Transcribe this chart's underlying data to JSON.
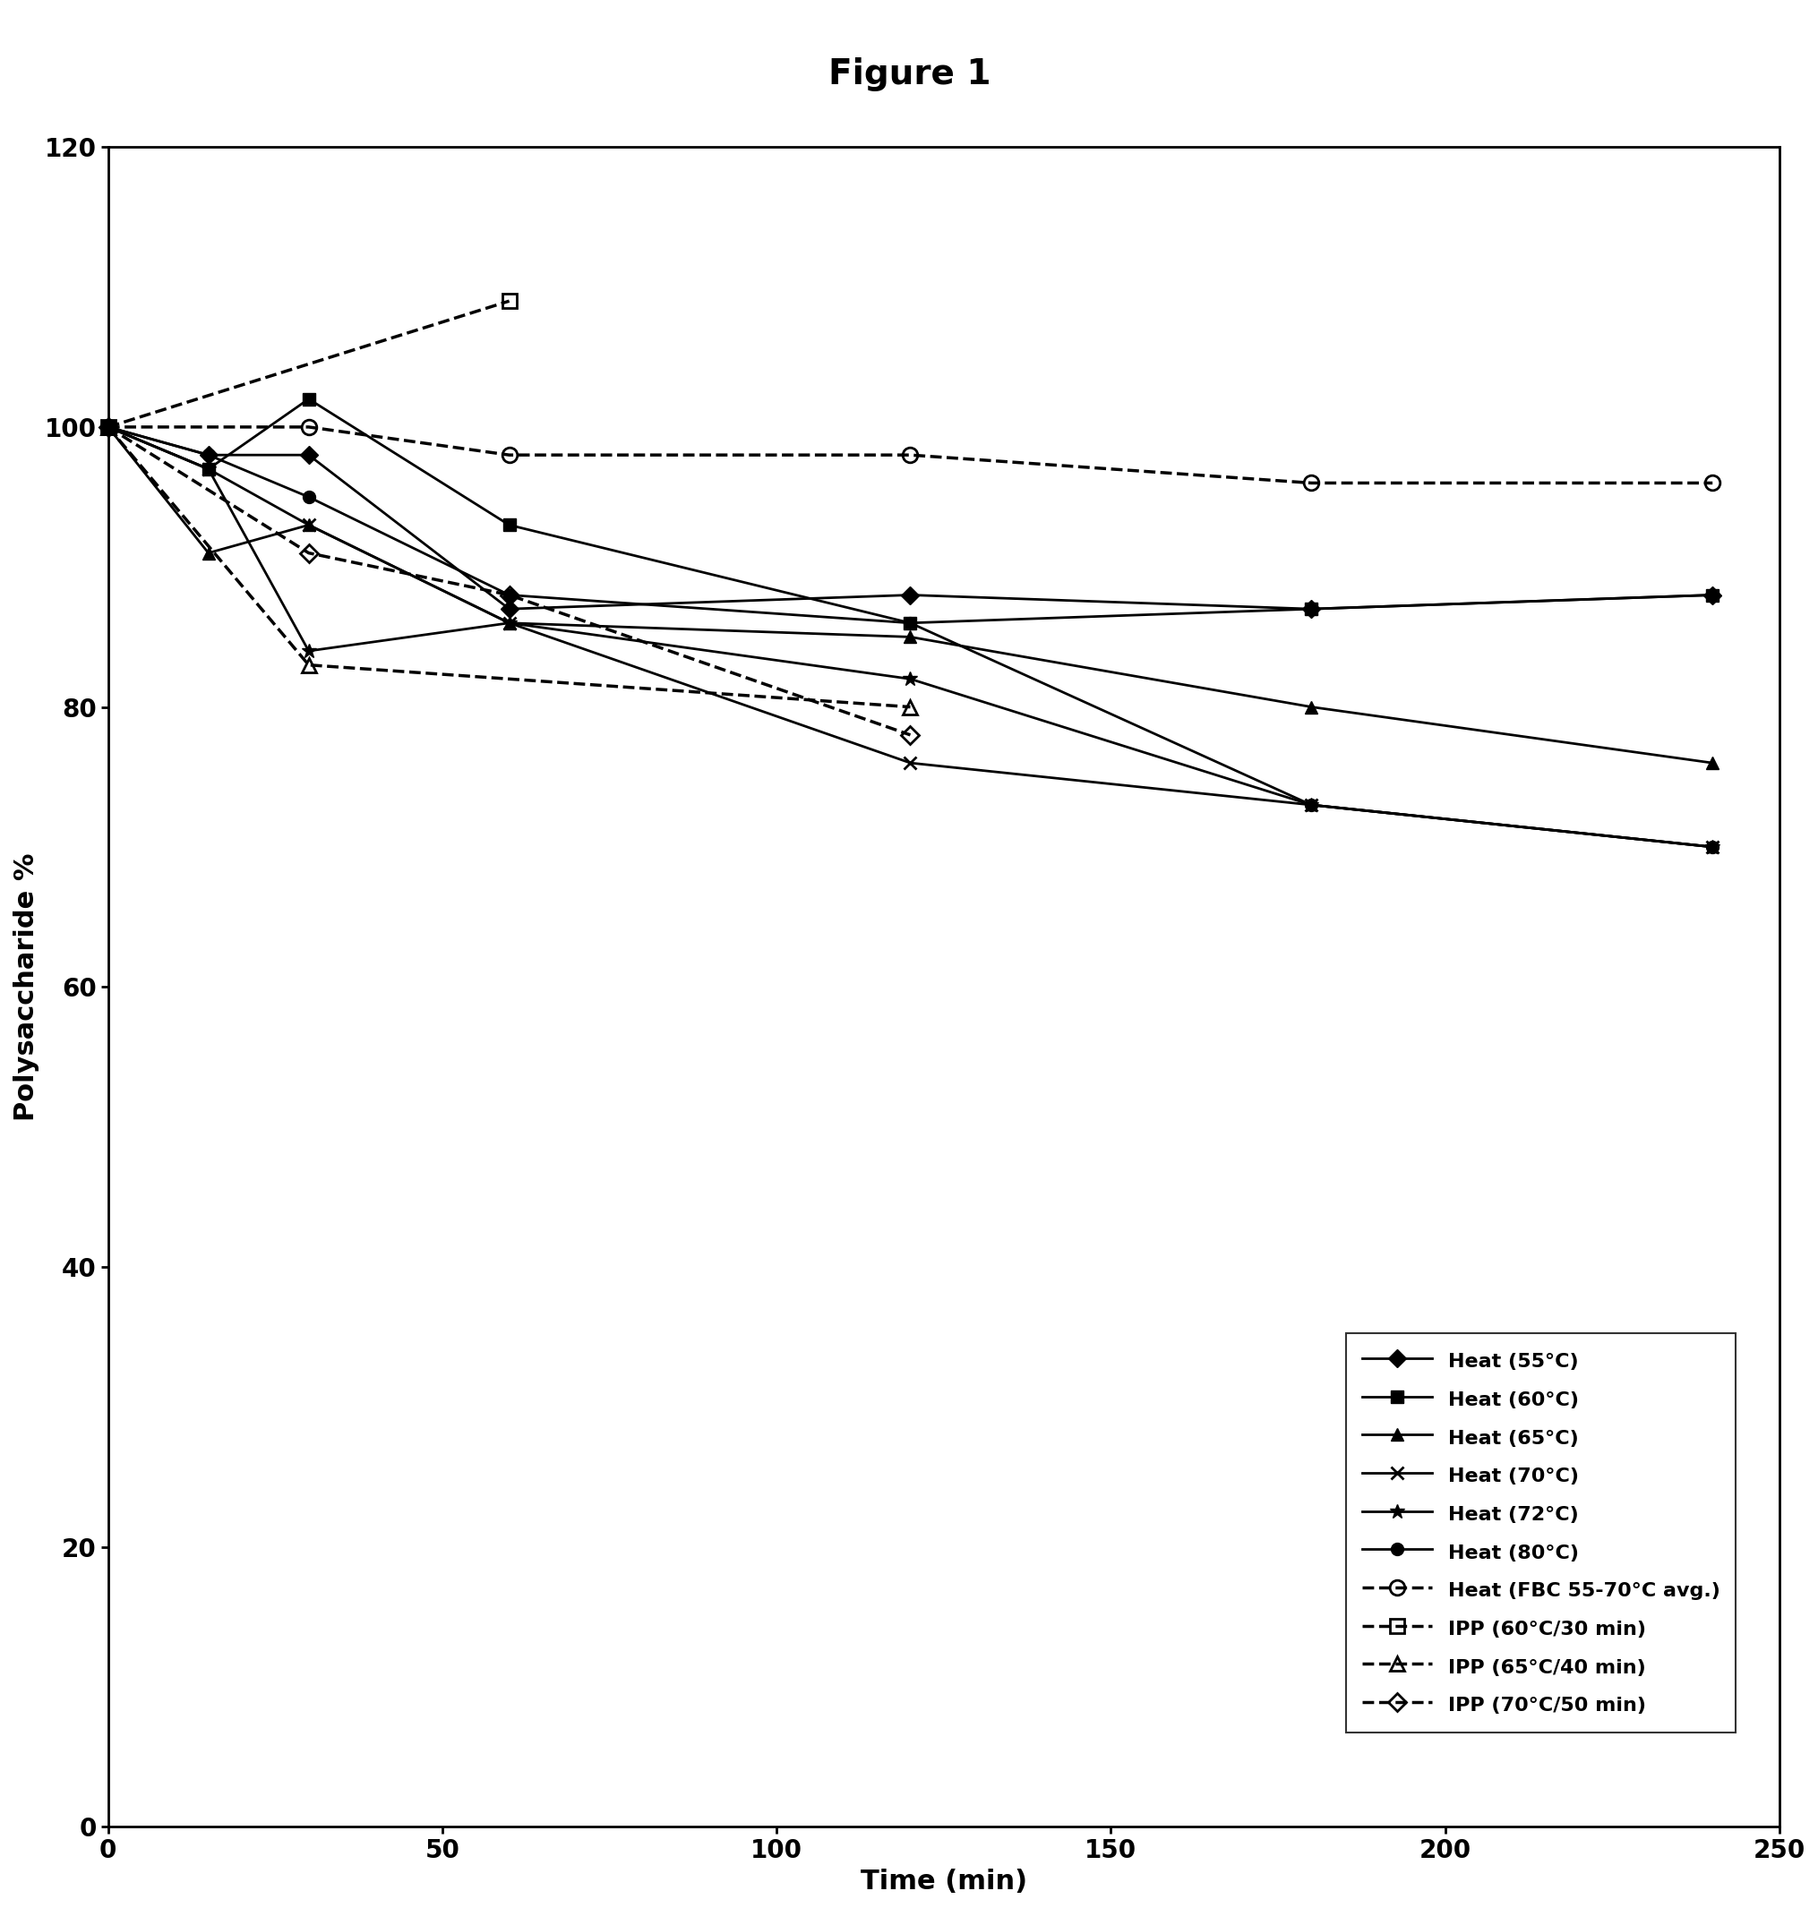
{
  "title": "Figure 1",
  "xlabel": "Time (min)",
  "ylabel": "Polysaccharide %",
  "xlim": [
    0,
    250
  ],
  "ylim": [
    0,
    120
  ],
  "xticks": [
    0,
    50,
    100,
    150,
    200,
    250
  ],
  "yticks": [
    0,
    20,
    40,
    60,
    80,
    100,
    120
  ],
  "series": [
    {
      "label": "Heat (55°C)",
      "x": [
        0,
        15,
        30,
        60,
        120,
        180,
        240
      ],
      "y": [
        100,
        98,
        98,
        87,
        88,
        87,
        88
      ],
      "linestyle": "-",
      "marker": "D",
      "color": "#000000",
      "markersize": 10,
      "fillstyle": "full",
      "linewidth": 2
    },
    {
      "label": "Heat (60°C)",
      "x": [
        0,
        15,
        30,
        60,
        120,
        180,
        240
      ],
      "y": [
        100,
        97,
        102,
        93,
        86,
        87,
        88
      ],
      "linestyle": "-",
      "marker": "s",
      "color": "#000000",
      "markersize": 10,
      "fillstyle": "full",
      "linewidth": 2
    },
    {
      "label": "Heat (65°C)",
      "x": [
        0,
        15,
        30,
        60,
        120,
        180,
        240
      ],
      "y": [
        100,
        91,
        93,
        86,
        85,
        80,
        76
      ],
      "linestyle": "-",
      "marker": "^",
      "color": "#000000",
      "markersize": 10,
      "fillstyle": "full",
      "linewidth": 2
    },
    {
      "label": "Heat (70°C)",
      "x": [
        0,
        15,
        30,
        60,
        120,
        180,
        240
      ],
      "y": [
        100,
        97,
        93,
        86,
        76,
        73,
        70
      ],
      "linestyle": "-",
      "marker": "x",
      "color": "#000000",
      "markersize": 10,
      "fillstyle": "full",
      "linewidth": 2,
      "markeredgewidth": 2
    },
    {
      "label": "Heat (72°C)",
      "x": [
        0,
        15,
        30,
        60,
        120,
        180,
        240
      ],
      "y": [
        100,
        97,
        84,
        86,
        82,
        73,
        70
      ],
      "linestyle": "-",
      "marker": "*",
      "color": "#000000",
      "markersize": 12,
      "fillstyle": "full",
      "linewidth": 2
    },
    {
      "label": "Heat (80°C)",
      "x": [
        0,
        15,
        30,
        60,
        120,
        180,
        240
      ],
      "y": [
        100,
        98,
        95,
        88,
        86,
        73,
        70
      ],
      "linestyle": "-",
      "marker": "o",
      "color": "#000000",
      "markersize": 10,
      "fillstyle": "full",
      "linewidth": 2
    },
    {
      "label": "Heat (FBC 55-70°C avg.)",
      "x": [
        0,
        30,
        60,
        120,
        180,
        240
      ],
      "y": [
        100,
        100,
        98,
        98,
        96,
        96
      ],
      "linestyle": "--",
      "marker": "o",
      "color": "#000000",
      "markersize": 12,
      "fillstyle": "none",
      "linewidth": 2.5
    },
    {
      "label": "IPP (60°C/30 min)",
      "x": [
        0,
        60
      ],
      "y": [
        100,
        109
      ],
      "linestyle": "--",
      "marker": "s",
      "color": "#000000",
      "markersize": 12,
      "fillstyle": "none",
      "linewidth": 2.5
    },
    {
      "label": "IPP (65°C/40 min)",
      "x": [
        0,
        30,
        120
      ],
      "y": [
        100,
        83,
        80
      ],
      "linestyle": "--",
      "marker": "^",
      "color": "#000000",
      "markersize": 12,
      "fillstyle": "none",
      "linewidth": 2.5
    },
    {
      "label": "IPP (70°C/50 min)",
      "x": [
        0,
        30,
        60,
        120
      ],
      "y": [
        100,
        91,
        88,
        78
      ],
      "linestyle": "--",
      "marker": "D",
      "color": "#000000",
      "markersize": 10,
      "fillstyle": "none",
      "linewidth": 2.5
    }
  ]
}
